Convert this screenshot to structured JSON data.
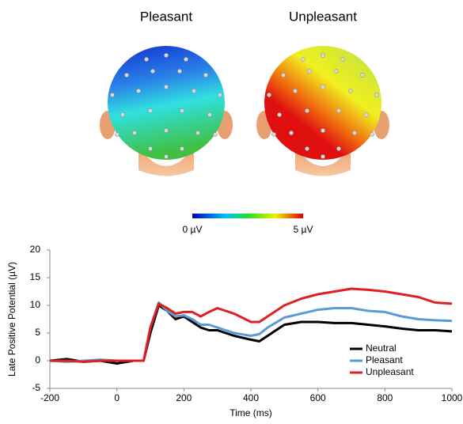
{
  "topomaps": {
    "titles": [
      "Pleasant",
      "Unpleasant"
    ],
    "colorbar_ticks": [
      {
        "value": 0,
        "label": "0 µV"
      },
      {
        "value": 5,
        "label": "5 µV"
      }
    ]
  },
  "chart_data": {
    "type": "line",
    "x_label": "Time (ms)",
    "y_label": "Late Positive Potential (µV)",
    "x": [
      -200,
      -150,
      -100,
      -50,
      0,
      50,
      80,
      100,
      125,
      150,
      175,
      200,
      225,
      250,
      275,
      300,
      350,
      400,
      425,
      450,
      500,
      550,
      600,
      650,
      700,
      750,
      800,
      850,
      900,
      950,
      1000
    ],
    "series": [
      {
        "name": "Neutral",
        "color": "#000000",
        "values": [
          0,
          0.3,
          -0.2,
          0,
          -0.5,
          0,
          0,
          5,
          10,
          9,
          7.5,
          8,
          7,
          6,
          5.5,
          5.5,
          4.5,
          3.8,
          3.5,
          4.5,
          6.5,
          7,
          7,
          6.8,
          6.8,
          6.5,
          6.2,
          5.8,
          5.5,
          5.5,
          5.3
        ]
      },
      {
        "name": "Pleasant",
        "color": "#5b9bd5",
        "values": [
          0,
          -0.2,
          0,
          0.2,
          0,
          0,
          0,
          6,
          10.5,
          9,
          8,
          8.2,
          7.5,
          6.5,
          6.5,
          6,
          5,
          4.5,
          4.8,
          6,
          7.8,
          8.5,
          9.2,
          9.5,
          9.5,
          9,
          8.8,
          8,
          7.5,
          7.3,
          7.2
        ]
      },
      {
        "name": "Unpleasant",
        "color": "#e02020",
        "values": [
          0,
          0,
          -0.2,
          0,
          0,
          0,
          0,
          6,
          10.3,
          9.5,
          8.5,
          8.8,
          8.8,
          8,
          8.8,
          9.5,
          8.5,
          7,
          7,
          8,
          10,
          11.2,
          12,
          12.5,
          13,
          12.8,
          12.5,
          12,
          11.5,
          10.5,
          10.3
        ]
      }
    ],
    "xlim": [
      -200,
      1000
    ],
    "xticks": [
      -200,
      0,
      200,
      400,
      600,
      800,
      1000
    ],
    "ylim": [
      -5,
      20
    ],
    "yticks": [
      -5,
      0,
      5,
      10,
      15,
      20
    ],
    "grid": false,
    "legend": "lower right"
  }
}
